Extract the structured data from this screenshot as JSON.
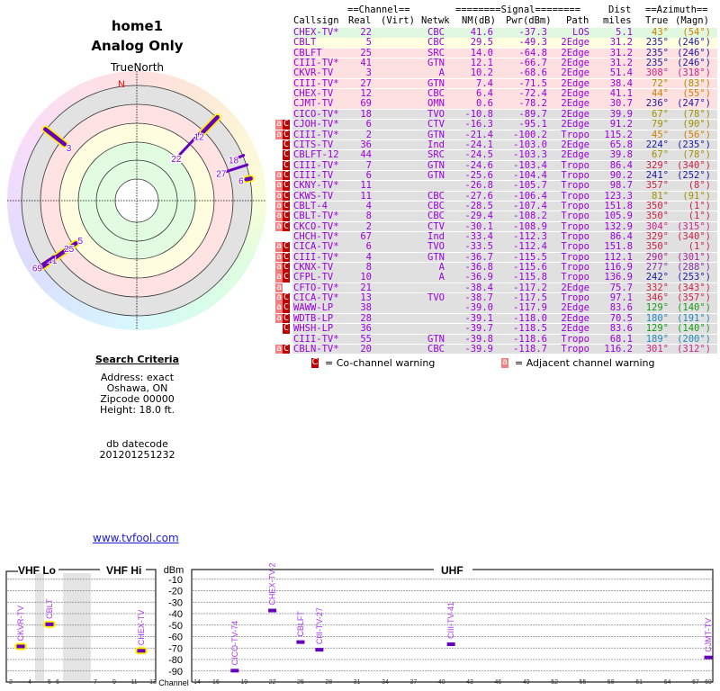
{
  "header": {
    "title": "home1",
    "subtitle": "Analog Only",
    "north_label": "TrueNorth",
    "n_marker": "N"
  },
  "search": {
    "heading": "Search Criteria",
    "address": "Address: exact",
    "city": "Oshawa, ON",
    "zip": "Zipcode 00000",
    "height": "Height: 18.0 ft.",
    "db_label": "db datecode",
    "db_value": "201201251232"
  },
  "link": "www.tvfool.com",
  "table": {
    "group_channel": "==Channel==",
    "group_signal": "========Signal========",
    "group_dist": "Dist",
    "group_azimuth": "==Azimuth==",
    "columns": [
      "Callsign",
      "Real",
      "(Virt)",
      "Netwk",
      "NM(dB)",
      "Pwr(dBm)",
      "Path",
      "miles",
      "True",
      "(Magn)"
    ],
    "rows": [
      {
        "call": "CHEX-TV*",
        "real": "22",
        "net": "CBC",
        "nm": "41.6",
        "pwr": "-37.3",
        "path": "LOS",
        "dist": "5.1",
        "true": "43°",
        "magn": "(54°)",
        "bg": "#e0f8e0",
        "azc": "#d08000",
        "flags": ""
      },
      {
        "call": "CBLT",
        "real": "5",
        "net": "CBC",
        "nm": "29.5",
        "pwr": "-49.3",
        "path": "2Edge",
        "dist": "31.2",
        "true": "235°",
        "magn": "(246°)",
        "bg": "#ffffe0",
        "azc": "#1a1aa0",
        "flags": ""
      },
      {
        "call": "CBLFT",
        "real": "25",
        "net": "SRC",
        "nm": "14.0",
        "pwr": "-64.8",
        "path": "2Edge",
        "dist": "31.2",
        "true": "235°",
        "magn": "(246°)",
        "bg": "#ffe0e0",
        "azc": "#1a1aa0",
        "flags": ""
      },
      {
        "call": "CIII-TV*",
        "real": "41",
        "net": "GTN",
        "nm": "12.1",
        "pwr": "-66.7",
        "path": "2Edge",
        "dist": "31.2",
        "true": "235°",
        "magn": "(246°)",
        "bg": "#ffe0e0",
        "azc": "#1a1aa0",
        "flags": ""
      },
      {
        "call": "CKVR-TV",
        "real": "3",
        "net": "A",
        "nm": "10.2",
        "pwr": "-68.6",
        "path": "2Edge",
        "dist": "51.4",
        "true": "308°",
        "magn": "(318°)",
        "bg": "#ffe0e0",
        "azc": "#cc2288",
        "flags": ""
      },
      {
        "call": "CIII-TV*",
        "real": "27",
        "net": "GTN",
        "nm": "7.4",
        "pwr": "-71.5",
        "path": "2Edge",
        "dist": "38.4",
        "true": "72°",
        "magn": "(83°)",
        "bg": "#ffe0e0",
        "azc": "#a09000",
        "flags": ""
      },
      {
        "call": "CHEX-TV",
        "real": "12",
        "net": "CBC",
        "nm": "6.4",
        "pwr": "-72.4",
        "path": "2Edge",
        "dist": "41.1",
        "true": "44°",
        "magn": "(55°)",
        "bg": "#ffe0e0",
        "azc": "#d08000",
        "flags": ""
      },
      {
        "call": "CJMT-TV",
        "real": "69",
        "net": "OMN",
        "nm": "0.6",
        "pwr": "-78.2",
        "path": "2Edge",
        "dist": "30.7",
        "true": "236°",
        "magn": "(247°)",
        "bg": "#ffe0e0",
        "azc": "#1a1aa0",
        "flags": ""
      },
      {
        "call": "CICO-TV*",
        "real": "18",
        "net": "TVO",
        "nm": "-10.8",
        "pwr": "-89.7",
        "path": "2Edge",
        "dist": "39.9",
        "true": "67°",
        "magn": "(78°)",
        "bg": "#e0e0e0",
        "azc": "#a09000",
        "flags": ""
      },
      {
        "call": "CJOH-TV*",
        "real": "6",
        "net": "CTV",
        "nm": "-16.3",
        "pwr": "-95.1",
        "path": "2Edge",
        "dist": "91.2",
        "true": "79°",
        "magn": "(90°)",
        "bg": "#e0e0e0",
        "azc": "#a09000",
        "flags": "aC"
      },
      {
        "call": "CIII-TV*",
        "real": "2",
        "net": "GTN",
        "nm": "-21.4",
        "pwr": "-100.2",
        "path": "Tropo",
        "dist": "115.2",
        "true": "45°",
        "magn": "(56°)",
        "bg": "#e0e0e0",
        "azc": "#d08000",
        "flags": "aC"
      },
      {
        "call": "CITS-TV",
        "real": "36",
        "net": "Ind",
        "nm": "-24.1",
        "pwr": "-103.0",
        "path": "2Edge",
        "dist": "65.8",
        "true": "224°",
        "magn": "(235°)",
        "bg": "#e0e0e0",
        "azc": "#1a1aa0",
        "flags": "C"
      },
      {
        "call": "CBLFT-12",
        "real": "44",
        "net": "SRC",
        "nm": "-24.5",
        "pwr": "-103.3",
        "path": "2Edge",
        "dist": "39.8",
        "true": "67°",
        "magn": "(78°)",
        "bg": "#e0e0e0",
        "azc": "#a09000",
        "flags": "C"
      },
      {
        "call": "CIII-TV*",
        "real": "7",
        "net": "GTN",
        "nm": "-24.6",
        "pwr": "-103.4",
        "path": "Tropo",
        "dist": "86.4",
        "true": "329°",
        "magn": "(340°)",
        "bg": "#e0e0e0",
        "azc": "#cc2244",
        "flags": "C"
      },
      {
        "call": "CIII-TV",
        "real": "6",
        "net": "GTN",
        "nm": "-25.6",
        "pwr": "-104.4",
        "path": "Tropo",
        "dist": "90.2",
        "true": "241°",
        "magn": "(252°)",
        "bg": "#e0e0e0",
        "azc": "#1a1aa0",
        "flags": "aC"
      },
      {
        "call": "CKNY-TV*",
        "real": "11",
        "net": "",
        "nm": "-26.8",
        "pwr": "-105.7",
        "path": "Tropo",
        "dist": "98.7",
        "true": "357°",
        "magn": "(8°)",
        "bg": "#e0e0e0",
        "azc": "#cc2244",
        "flags": "aC"
      },
      {
        "call": "CKWS-TV",
        "real": "11",
        "net": "CBC",
        "nm": "-27.6",
        "pwr": "-106.4",
        "path": "Tropo",
        "dist": "123.3",
        "true": "81°",
        "magn": "(91°)",
        "bg": "#e0e0e0",
        "azc": "#a09000",
        "flags": "aC"
      },
      {
        "call": "CBLT-4",
        "real": "4",
        "net": "CBC",
        "nm": "-28.5",
        "pwr": "-107.4",
        "path": "Tropo",
        "dist": "151.8",
        "true": "350°",
        "magn": "(1°)",
        "bg": "#e0e0e0",
        "azc": "#cc2244",
        "flags": "aC"
      },
      {
        "call": "CBLT-TV*",
        "real": "8",
        "net": "CBC",
        "nm": "-29.4",
        "pwr": "-108.2",
        "path": "Tropo",
        "dist": "105.9",
        "true": "350°",
        "magn": "(1°)",
        "bg": "#e0e0e0",
        "azc": "#cc2244",
        "flags": "aC"
      },
      {
        "call": "CKCO-TV*",
        "real": "2",
        "net": "CTV",
        "nm": "-30.1",
        "pwr": "-108.9",
        "path": "Tropo",
        "dist": "132.9",
        "true": "304°",
        "magn": "(315°)",
        "bg": "#e0e0e0",
        "azc": "#cc2288",
        "flags": "aC"
      },
      {
        "call": "CHCH-TV*",
        "real": "67",
        "net": "Ind",
        "nm": "-33.4",
        "pwr": "-112.3",
        "path": "Tropo",
        "dist": "86.4",
        "true": "329°",
        "magn": "(340°)",
        "bg": "#e0e0e0",
        "azc": "#cc2244",
        "flags": ""
      },
      {
        "call": "CICA-TV*",
        "real": "6",
        "net": "TVO",
        "nm": "-33.5",
        "pwr": "-112.4",
        "path": "Tropo",
        "dist": "151.8",
        "true": "350°",
        "magn": "(1°)",
        "bg": "#e0e0e0",
        "azc": "#cc2244",
        "flags": "aC"
      },
      {
        "call": "CIII-TV*",
        "real": "4",
        "net": "GTN",
        "nm": "-36.7",
        "pwr": "-115.5",
        "path": "Tropo",
        "dist": "112.1",
        "true": "290°",
        "magn": "(301°)",
        "bg": "#e0e0e0",
        "azc": "#aa2299",
        "flags": "aC"
      },
      {
        "call": "CKNX-TV",
        "real": "8",
        "net": "A",
        "nm": "-36.8",
        "pwr": "-115.6",
        "path": "Tropo",
        "dist": "116.9",
        "true": "277°",
        "magn": "(288°)",
        "bg": "#e0e0e0",
        "azc": "#8833aa",
        "flags": "aC"
      },
      {
        "call": "CFPL-TV",
        "real": "10",
        "net": "A",
        "nm": "-36.9",
        "pwr": "-115.8",
        "path": "Tropo",
        "dist": "136.9",
        "true": "242°",
        "magn": "(253°)",
        "bg": "#e0e0e0",
        "azc": "#1a1aa0",
        "flags": "aC"
      },
      {
        "call": "CFTO-TV*",
        "real": "21",
        "net": "",
        "nm": "-38.4",
        "pwr": "-117.2",
        "path": "2Edge",
        "dist": "75.7",
        "true": "332°",
        "magn": "(343°)",
        "bg": "#e0e0e0",
        "azc": "#cc2244",
        "flags": "a"
      },
      {
        "call": "CICA-TV*",
        "real": "13",
        "net": "TVO",
        "nm": "-38.7",
        "pwr": "-117.5",
        "path": "Tropo",
        "dist": "97.1",
        "true": "346°",
        "magn": "(357°)",
        "bg": "#e0e0e0",
        "azc": "#cc2244",
        "flags": "aC"
      },
      {
        "call": "WAWW-LP",
        "real": "38",
        "net": "",
        "nm": "-39.0",
        "pwr": "-117.9",
        "path": "2Edge",
        "dist": "83.6",
        "true": "129°",
        "magn": "(140°)",
        "bg": "#e0e0e0",
        "azc": "#1a9a1a",
        "flags": "aC"
      },
      {
        "call": "WDTB-LP",
        "real": "28",
        "net": "",
        "nm": "-39.1",
        "pwr": "-118.0",
        "path": "2Edge",
        "dist": "70.5",
        "true": "180°",
        "magn": "(191°)",
        "bg": "#e0e0e0",
        "azc": "#2288bb",
        "flags": "aC"
      },
      {
        "call": "WHSH-LP",
        "real": "36",
        "net": "",
        "nm": "-39.7",
        "pwr": "-118.5",
        "path": "2Edge",
        "dist": "83.6",
        "true": "129°",
        "magn": "(140°)",
        "bg": "#e0e0e0",
        "azc": "#1a9a1a",
        "flags": "C"
      },
      {
        "call": "CIII-TV*",
        "real": "55",
        "net": "GTN",
        "nm": "-39.8",
        "pwr": "-118.6",
        "path": "Tropo",
        "dist": "68.1",
        "true": "189°",
        "magn": "(200°)",
        "bg": "#e0e0e0",
        "azc": "#2288bb",
        "flags": ""
      },
      {
        "call": "CBLN-TV*",
        "real": "20",
        "net": "CBC",
        "nm": "-39.9",
        "pwr": "-118.7",
        "path": "Tropo",
        "dist": "116.2",
        "true": "301°",
        "magn": "(312°)",
        "bg": "#e0e0e0",
        "azc": "#cc2288",
        "flags": "aC"
      }
    ]
  },
  "legend": {
    "co_glyph": "C",
    "co_text": "= Co-channel warning",
    "adj_glyph": "a",
    "adj_text": "= Adjacent channel warning"
  },
  "polar": {
    "marks": [
      {
        "label": "22",
        "az": 43,
        "nm": 41.6,
        "halo": false
      },
      {
        "label": "12",
        "az": 44,
        "nm": 6.4,
        "halo": true
      },
      {
        "label": "3",
        "az": 308,
        "nm": 10.2,
        "halo": true
      },
      {
        "label": "18",
        "az": 67,
        "nm": -10.8,
        "halo": false
      },
      {
        "label": "27",
        "az": 72,
        "nm": 7.4,
        "halo": false
      },
      {
        "label": "6",
        "az": 79,
        "nm": -16.3,
        "halo": true
      },
      {
        "label": "5",
        "az": 235,
        "nm": 29.5,
        "halo": true
      },
      {
        "label": "25",
        "az": 235,
        "nm": 14.0,
        "halo": false
      },
      {
        "label": "41",
        "az": 235,
        "nm": 12.1,
        "halo": false
      },
      {
        "label": "69",
        "az": 236,
        "nm": 0.6,
        "halo": false
      }
    ]
  },
  "spectrum": {
    "vhf_lo": "VHF Lo",
    "vhf_hi": "VHF Hi",
    "uhf": "UHF",
    "dbm": "dBm",
    "channel": "Channel",
    "y_ticks": [
      -10,
      -20,
      -30,
      -40,
      -50,
      -60,
      -70,
      -80,
      -90
    ],
    "vhf_ticks": [
      2,
      4,
      5,
      6,
      7,
      9,
      11,
      13
    ],
    "uhf_ticks": [
      14,
      16,
      19,
      22,
      25,
      28,
      31,
      34,
      37,
      40,
      43,
      46,
      49,
      52,
      55,
      58,
      61,
      64,
      67,
      69
    ],
    "bars": [
      {
        "label": "CKVR-TV",
        "ch": 3,
        "dbm": -68.6,
        "halo": true
      },
      {
        "label": "CBLT",
        "ch": 5,
        "dbm": -49.3,
        "halo": true
      },
      {
        "label": "CHEX-TV",
        "ch": 12,
        "dbm": -72.4,
        "halo": true
      },
      {
        "label": "CICO-TV-74",
        "ch": 18,
        "dbm": -89.7,
        "halo": false
      },
      {
        "label": "CHEX-TV-2",
        "ch": 22,
        "dbm": -37.3,
        "halo": false
      },
      {
        "label": "CBLFT",
        "ch": 25,
        "dbm": -64.8,
        "halo": false
      },
      {
        "label": "CIII-TV-27",
        "ch": 27,
        "dbm": -71.5,
        "halo": false
      },
      {
        "label": "CIII-TV-41",
        "ch": 41,
        "dbm": -66.7,
        "halo": false
      },
      {
        "label": "CJMT-TV",
        "ch": 69,
        "dbm": -78.2,
        "halo": false
      }
    ]
  }
}
